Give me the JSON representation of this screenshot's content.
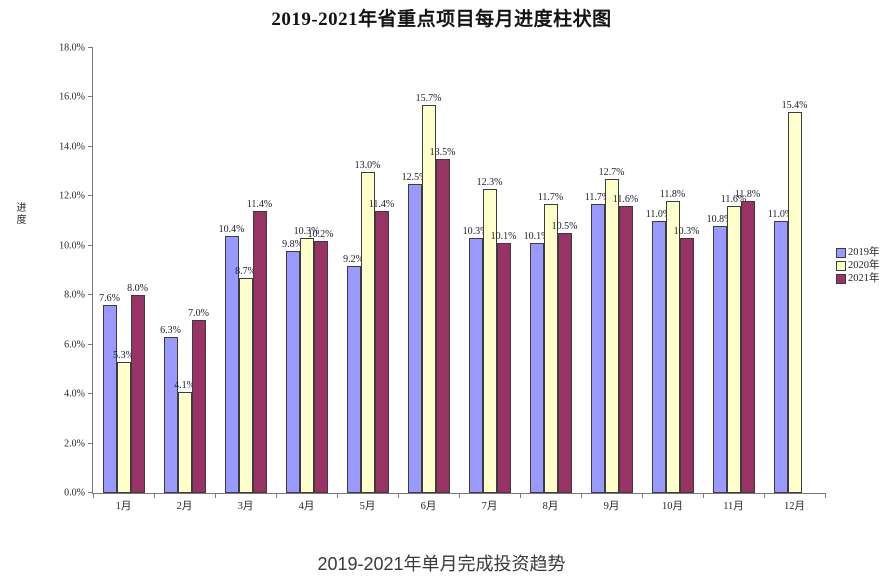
{
  "page": {
    "title": "2019-2021年省重点项目每月进度柱状图",
    "caption": "2019-2021年单月完成投资趋势"
  },
  "chart_data": {
    "type": "bar",
    "title": "2019-2021年省重点项目每月进度柱状图",
    "subtitle": "2019-2021年单月完成投资趋势",
    "xlabel": "",
    "ylabel": "进度",
    "categories": [
      "1月",
      "2月",
      "3月",
      "4月",
      "5月",
      "6月",
      "7月",
      "8月",
      "9月",
      "10月",
      "11月",
      "12月"
    ],
    "series": [
      {
        "name": "2019年",
        "color": "#9999FF",
        "values": [
          7.6,
          6.3,
          10.4,
          9.8,
          9.2,
          12.5,
          10.3,
          10.1,
          11.7,
          11.0,
          10.8,
          11.0
        ]
      },
      {
        "name": "2020年",
        "color": "#FFFFCC",
        "values": [
          5.3,
          4.1,
          8.7,
          10.3,
          13.0,
          15.7,
          12.3,
          11.7,
          12.7,
          11.8,
          11.6,
          15.4
        ]
      },
      {
        "name": "2021年",
        "color": "#993366",
        "values": [
          8.0,
          7.0,
          11.4,
          10.2,
          11.4,
          13.5,
          10.1,
          10.5,
          11.6,
          10.3,
          11.8,
          null
        ]
      }
    ],
    "ylim": [
      0,
      18
    ],
    "y_tick_step": 2,
    "y_tick_labels": [
      "0.0%",
      "2.0%",
      "4.0%",
      "6.0%",
      "8.0%",
      "10.0%",
      "12.0%",
      "14.0%",
      "16.0%",
      "18.0%"
    ],
    "grid": false,
    "data_labels": true,
    "data_label_format": "{value}%",
    "legend_position": "right"
  }
}
